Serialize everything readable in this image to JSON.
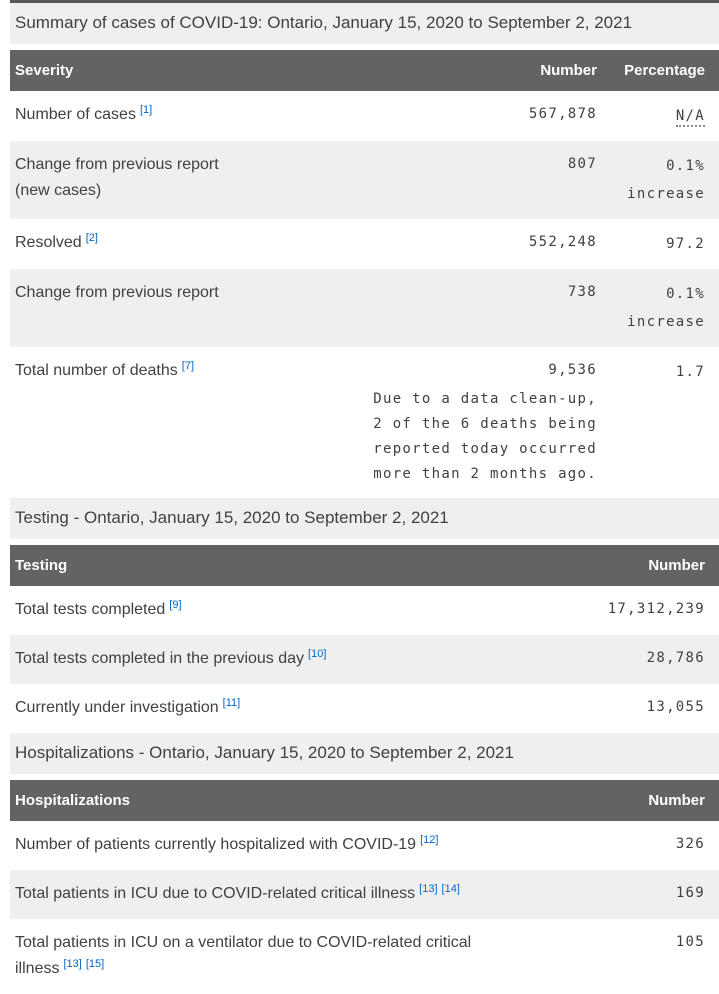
{
  "colors": {
    "header_bg": "#646362",
    "header_text": "#ffffff",
    "band_bg": "#efefef",
    "shaded_row_bg": "#efefef",
    "body_text": "#414042",
    "footnote_link": "#0066CC",
    "top_rule": "#575757"
  },
  "sections": [
    {
      "title": "Summary of cases of COVID-19: Ontario, January 15, 2020 to September 2, 2021",
      "table": {
        "columns": [
          "Severity",
          "Number",
          "Percentage"
        ],
        "rows": [
          {
            "label": "Number of cases",
            "refs": [
              "1"
            ],
            "number": "567,878",
            "percent": "N/A",
            "percent_abbr": true,
            "shaded": false
          },
          {
            "label": "Change from previous report\n(new cases)",
            "refs": [],
            "number": "807",
            "percent": "0.1%\nincrease",
            "shaded": true
          },
          {
            "label": "Resolved",
            "refs": [
              "2"
            ],
            "number": "552,248",
            "percent": "97.2",
            "shaded": false
          },
          {
            "label": "Change from previous report",
            "refs": [],
            "number": "738",
            "percent": "0.1%\nincrease",
            "shaded": true
          },
          {
            "label": "Total number of deaths",
            "refs": [
              "7"
            ],
            "number": "9,536",
            "note": "Due to a data clean-up,\n2 of the 6 deaths being\nreported today occurred\nmore than 2 months ago.",
            "percent": "1.7",
            "shaded": false
          }
        ]
      }
    },
    {
      "title": "Testing - Ontario, January 15, 2020 to September 2, 2021",
      "table": {
        "columns": [
          "Testing",
          "Number"
        ],
        "rows": [
          {
            "label": "Total tests completed",
            "refs": [
              "9"
            ],
            "number": "17,312,239",
            "shaded": false
          },
          {
            "label": "Total tests completed in the previous day",
            "refs": [
              "10"
            ],
            "number": "28,786",
            "shaded": true
          },
          {
            "label": "Currently under investigation",
            "refs": [
              "11"
            ],
            "number": "13,055",
            "shaded": false
          }
        ]
      }
    },
    {
      "title": "Hospitalizations - Ontario, January 15, 2020 to September 2, 2021",
      "table": {
        "columns": [
          "Hospitalizations",
          "Number"
        ],
        "rows": [
          {
            "label": "Number of patients currently hospitalized with COVID-19",
            "refs": [
              "12"
            ],
            "number": "326",
            "shaded": false
          },
          {
            "label": "Total patients in ICU due to COVID-related critical illness",
            "refs": [
              "13",
              "14"
            ],
            "number": "169",
            "shaded": true
          },
          {
            "label": "Total patients in ICU on a ventilator due to COVID-related critical\nillness",
            "refs": [
              "13",
              "15"
            ],
            "number": "105",
            "shaded": false
          }
        ]
      }
    }
  ]
}
